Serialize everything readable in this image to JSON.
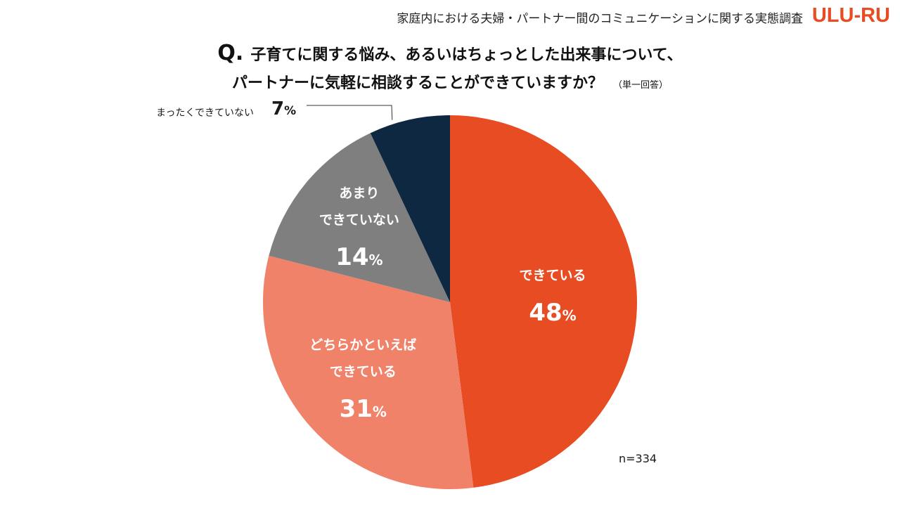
{
  "header": {
    "survey_title": "家庭内における夫婦・パートナー間のコミュニケーションに関する実態調査",
    "logo_text": "ULU-RU",
    "logo_parts": [
      "ULU",
      "-",
      "RU"
    ],
    "logo_color": "#e84c22"
  },
  "question": {
    "mark": "Q.",
    "line1": "子育てに関する悩み、あるいはちょっとした出来事について、",
    "line2": "パートナーに気軽に相談することができていますか？",
    "note": "（単一回答）"
  },
  "chart_data": {
    "type": "pie",
    "title": "子育てに関する悩み、あるいはちょっとした出来事について、パートナーに気軽に相談することができていますか？",
    "start": "12 o'clock, clockwise",
    "slices": [
      {
        "label_lines": [
          "できている"
        ],
        "value": 48,
        "color": "#e84c22",
        "label_color": "#ffffff"
      },
      {
        "label_lines": [
          "どちらかといえば",
          "できている"
        ],
        "value": 31,
        "color": "#f0826a",
        "label_color": "#ffffff"
      },
      {
        "label_lines": [
          "あまり",
          "できていない"
        ],
        "value": 14,
        "color": "#7f7f7f",
        "label_color": "#ffffff"
      },
      {
        "label_lines": [
          "まったくできていない"
        ],
        "value": 7,
        "color": "#0f2841",
        "label_color": "#1a1a1a",
        "label_outside": true
      }
    ],
    "unit": "%",
    "n_label": "n=334"
  }
}
